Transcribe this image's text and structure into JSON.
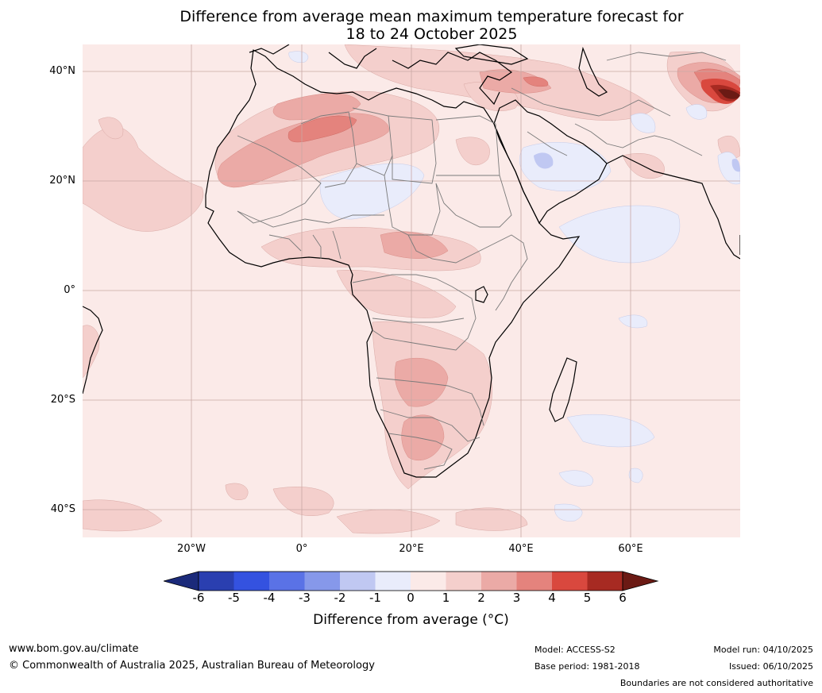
{
  "title": {
    "line1": "Difference from average mean maximum temperature forecast for",
    "line2": "18 to 24 October 2025"
  },
  "map": {
    "lat_labels": [
      "40°N",
      "20°N",
      "0°",
      "20°S",
      "40°S"
    ],
    "lon_labels": [
      "20°W",
      "0°",
      "20°E",
      "40°E",
      "60°E"
    ]
  },
  "colorbar": {
    "ticks": [
      "-6",
      "-5",
      "-4",
      "-3",
      "-2",
      "-1",
      "0",
      "1",
      "2",
      "3",
      "4",
      "5",
      "6"
    ],
    "colors": [
      "#1b2a7a",
      "#2a3fb0",
      "#3452e0",
      "#5a72e6",
      "#8698ea",
      "#c0c8f2",
      "#e9ecfb",
      "#fbeae8",
      "#f4cfcc",
      "#ebaaa6",
      "#e4837d",
      "#d9483e",
      "#a72a22",
      "#6b1a14"
    ],
    "label": "Difference from average (°C)"
  },
  "footer": {
    "website": "www.bom.gov.au/climate",
    "copyright": "© Commonwealth of Australia 2025, Australian Bureau of Meteorology",
    "model": "Model: ACCESS-S2",
    "base_period": "Base period: 1981-2018",
    "model_run": "Model run: 04/10/2025",
    "issued": "Issued: 06/10/2025",
    "disclaimer": "Boundaries are not considered authoritative"
  }
}
